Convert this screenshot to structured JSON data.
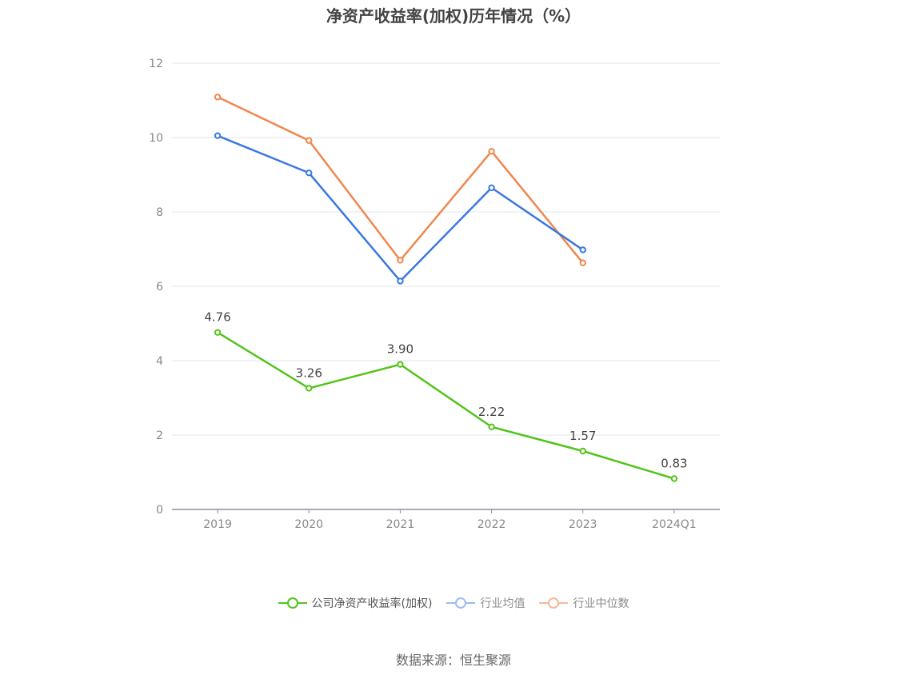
{
  "chart_data": {
    "type": "line",
    "title": "净资产收益率(加权)历年情况（%）",
    "categories": [
      "2019",
      "2020",
      "2021",
      "2022",
      "2023",
      "2024Q1"
    ],
    "ylim": [
      0,
      12
    ],
    "yticks": [
      0,
      2,
      4,
      6,
      8,
      10,
      12
    ],
    "grid": true,
    "legend_position": "bottom",
    "series": [
      {
        "name": "公司净资产收益率(加权)",
        "values": [
          4.76,
          3.26,
          3.9,
          2.22,
          1.57,
          0.83
        ],
        "labels": [
          "4.76",
          "3.26",
          "3.90",
          "2.22",
          "1.57",
          "0.83"
        ],
        "color": "#52c41a"
      },
      {
        "name": "行业均值",
        "values": [
          10.05,
          9.05,
          6.14,
          8.65,
          6.98,
          null
        ],
        "color": "#3a78e0"
      },
      {
        "name": "行业中位数",
        "values": [
          11.09,
          9.92,
          6.7,
          9.63,
          6.63,
          null
        ],
        "color": "#f0874f"
      }
    ]
  },
  "legend": {
    "items": [
      {
        "label": "公司净资产收益率(加权)",
        "color": "#52c41a"
      },
      {
        "label": "行业均值",
        "color": "#9bbcf0"
      },
      {
        "label": "行业中位数",
        "color": "#f5b89a"
      }
    ]
  },
  "source": "数据来源：恒生聚源"
}
